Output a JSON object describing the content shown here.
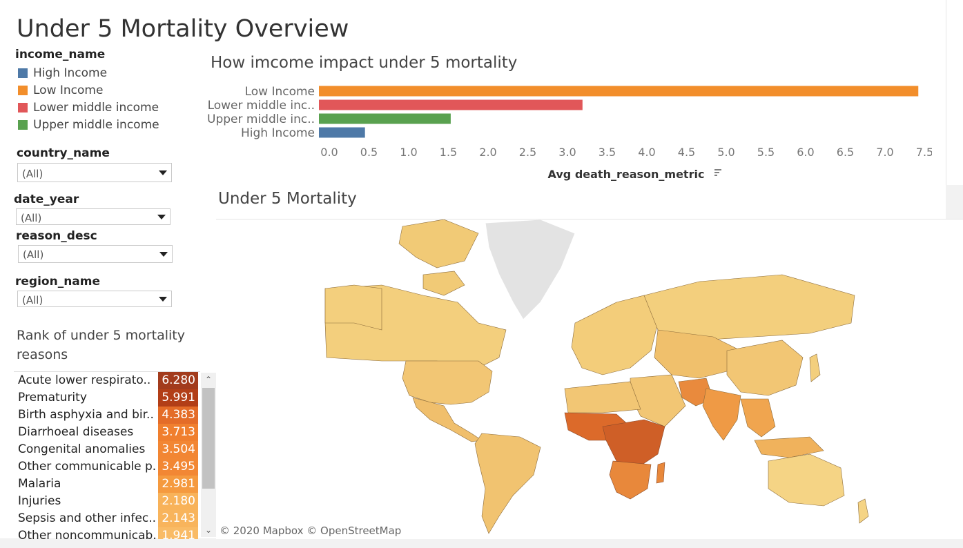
{
  "dashboard": {
    "title": "Under 5 Mortality Overview"
  },
  "legend": {
    "title": "income_name",
    "items": [
      {
        "label": "High Income",
        "color": "#4e79a7"
      },
      {
        "label": "Low Income",
        "color": "#f28e2b"
      },
      {
        "label": "Lower middle income",
        "color": "#e15759"
      },
      {
        "label": "Upper middle income",
        "color": "#59a14f"
      }
    ]
  },
  "filters": {
    "country": {
      "label": "country_name",
      "value": "(All)"
    },
    "date": {
      "label": "date_year",
      "value": "(All)"
    },
    "reason": {
      "label": "reason_desc",
      "value": "(All)"
    },
    "region": {
      "label": "region_name",
      "value": "(All)"
    }
  },
  "rank": {
    "title": "Rank of under 5 mortality reasons",
    "rows": [
      {
        "name": "Acute lower respirato..",
        "value": "6.280",
        "color": "#a23b1c"
      },
      {
        "name": "Prematurity",
        "value": "5.991",
        "color": "#b23e17"
      },
      {
        "name": "Birth asphyxia and bir..",
        "value": "4.383",
        "color": "#e46c28"
      },
      {
        "name": "Diarrhoeal diseases",
        "value": "3.713",
        "color": "#f07f2e"
      },
      {
        "name": "Congenital anomalies",
        "value": "3.504",
        "color": "#f28633"
      },
      {
        "name": "Other communicable p..",
        "value": "3.495",
        "color": "#f28734"
      },
      {
        "name": "Malaria",
        "value": "2.981",
        "color": "#f59a3f"
      },
      {
        "name": "Injuries",
        "value": "2.180",
        "color": "#f8b259"
      },
      {
        "name": "Sepsis and other infec..",
        "value": "2.143",
        "color": "#f8b45c"
      },
      {
        "name": "Other noncommunicab..",
        "value": "1.941",
        "color": "#f9bb66"
      }
    ]
  },
  "bar_chart_title": "How imcome impact under 5  mortality",
  "chart_data": {
    "type": "bar",
    "orientation": "horizontal",
    "title": "How imcome impact under 5  mortality",
    "categories": [
      "Low Income",
      "Lower middle inc..",
      "Upper middle inc..",
      "High Income"
    ],
    "values": [
      7.55,
      3.32,
      1.66,
      0.58
    ],
    "colors": [
      "#f28e2b",
      "#e15759",
      "#59a14f",
      "#4e79a7"
    ],
    "xlabel": "Avg death_reason_metric",
    "xlim": [
      0,
      7.75
    ],
    "ticks": [
      "0.0",
      "0.5",
      "1.0",
      "1.5",
      "2.0",
      "2.5",
      "3.0",
      "3.5",
      "4.0",
      "4.5",
      "5.0",
      "5.5",
      "6.0",
      "6.5",
      "7.0",
      "7.5"
    ],
    "grid": false
  },
  "map": {
    "title": "Under 5 Mortality",
    "credit": "© 2020 Mapbox © OpenStreetMap"
  }
}
